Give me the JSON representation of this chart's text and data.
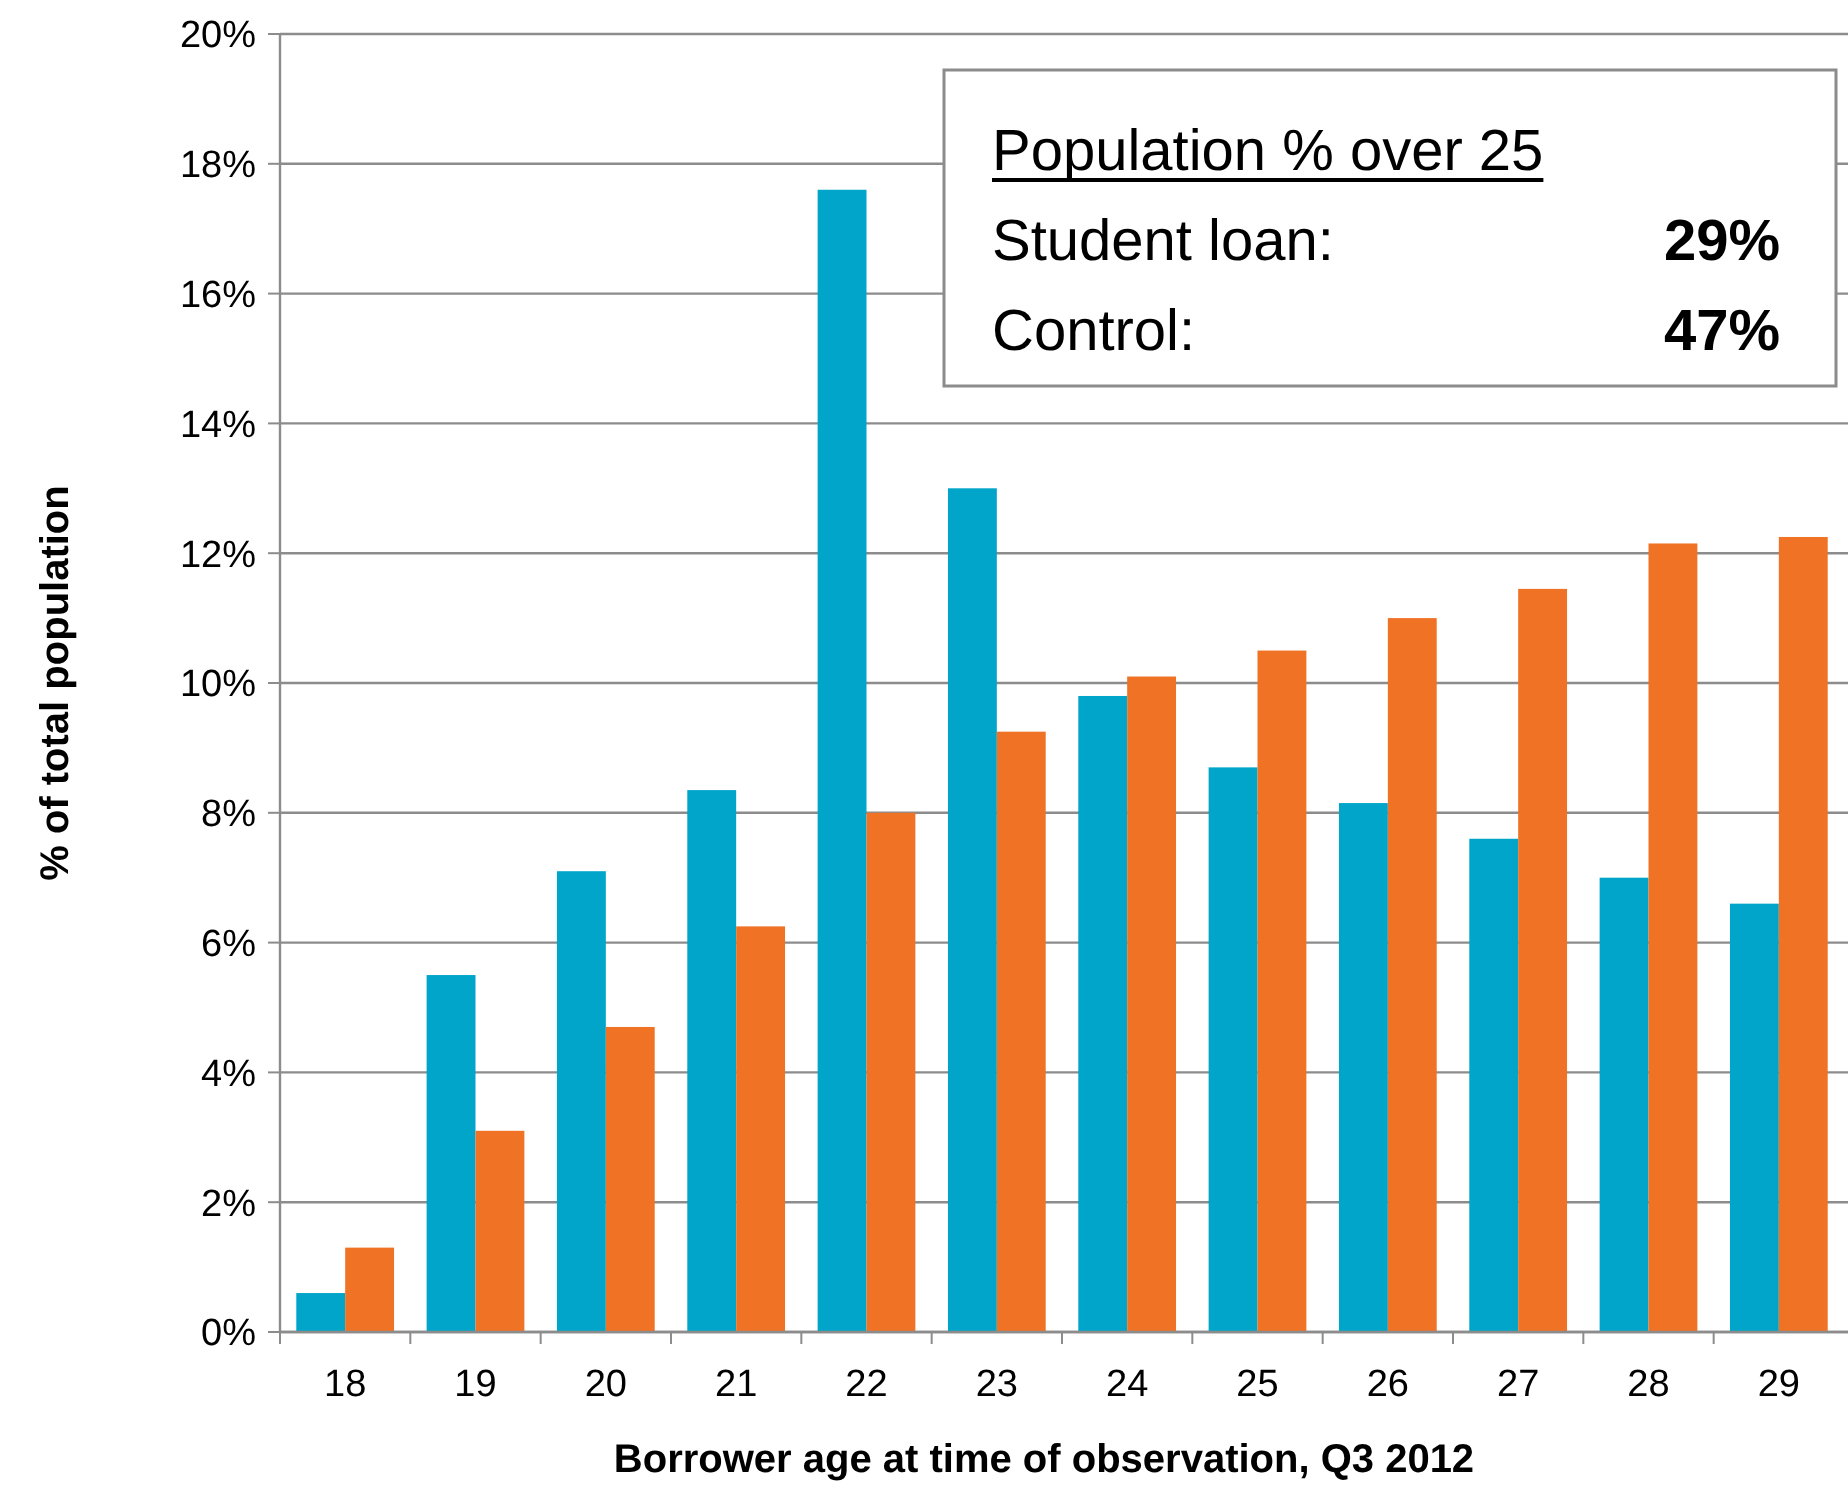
{
  "chart_data": {
    "type": "bar",
    "xlabel": "Borrower age at time of observation, Q3 2012",
    "ylabel": "% of total population",
    "categories": [
      "18",
      "19",
      "20",
      "21",
      "22",
      "23",
      "24",
      "25",
      "26",
      "27",
      "28",
      "29"
    ],
    "series": [
      {
        "color": "#00a5c9",
        "values": [
          0.6,
          5.5,
          7.1,
          8.35,
          17.6,
          13.0,
          9.8,
          8.7,
          8.15,
          7.6,
          7.0,
          6.6
        ]
      },
      {
        "color": "#f07225",
        "values": [
          1.3,
          3.1,
          4.7,
          6.25,
          8.0,
          9.25,
          10.1,
          10.5,
          11.0,
          11.45,
          12.15,
          12.25
        ]
      }
    ],
    "ylim": [
      0,
      20
    ],
    "yticks": [
      {
        "value": 0,
        "label": "0%"
      },
      {
        "value": 2,
        "label": "2%"
      },
      {
        "value": 4,
        "label": "4%"
      },
      {
        "value": 6,
        "label": "6%"
      },
      {
        "value": 8,
        "label": "8%"
      },
      {
        "value": 10,
        "label": "10%"
      },
      {
        "value": 12,
        "label": "12%"
      },
      {
        "value": 14,
        "label": "14%"
      },
      {
        "value": 16,
        "label": "16%"
      },
      {
        "value": 18,
        "label": "18%"
      },
      {
        "value": 20,
        "label": "20%"
      }
    ],
    "grid": "y",
    "annotations": [
      "Population % over 25",
      "Student loan:",
      "29%",
      "Control:",
      "47%"
    ]
  }
}
